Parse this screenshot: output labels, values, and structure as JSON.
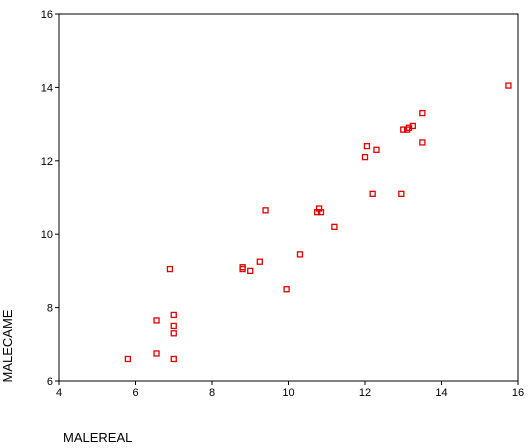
{
  "chart_data": {
    "type": "scatter",
    "xlabel": "MALEREAL",
    "ylabel": "MALECAME",
    "xlim": [
      4,
      16
    ],
    "ylim": [
      6,
      16
    ],
    "xticks": [
      "4",
      "6",
      "8",
      "10",
      "12",
      "14",
      "16"
    ],
    "yticks": [
      "6",
      "8",
      "10",
      "12",
      "14",
      "16"
    ],
    "grid": false,
    "marker": "hollow-square",
    "marker_color": "#e00000",
    "points": [
      {
        "x": 5.8,
        "y": 6.6
      },
      {
        "x": 6.55,
        "y": 6.75
      },
      {
        "x": 7.0,
        "y": 6.6
      },
      {
        "x": 7.0,
        "y": 7.3
      },
      {
        "x": 7.0,
        "y": 7.5
      },
      {
        "x": 6.55,
        "y": 7.65
      },
      {
        "x": 7.0,
        "y": 7.8
      },
      {
        "x": 6.9,
        "y": 9.05
      },
      {
        "x": 8.8,
        "y": 9.1
      },
      {
        "x": 8.8,
        "y": 9.05
      },
      {
        "x": 9.0,
        "y": 9.0
      },
      {
        "x": 9.25,
        "y": 9.25
      },
      {
        "x": 9.4,
        "y": 10.65
      },
      {
        "x": 9.95,
        "y": 8.5
      },
      {
        "x": 10.3,
        "y": 9.45
      },
      {
        "x": 10.75,
        "y": 10.6
      },
      {
        "x": 10.8,
        "y": 10.7
      },
      {
        "x": 10.85,
        "y": 10.6
      },
      {
        "x": 11.2,
        "y": 10.2
      },
      {
        "x": 12.0,
        "y": 12.1
      },
      {
        "x": 12.05,
        "y": 12.4
      },
      {
        "x": 12.2,
        "y": 11.1
      },
      {
        "x": 12.3,
        "y": 12.3
      },
      {
        "x": 12.95,
        "y": 11.1
      },
      {
        "x": 13.0,
        "y": 12.85
      },
      {
        "x": 13.1,
        "y": 12.85
      },
      {
        "x": 13.15,
        "y": 12.9
      },
      {
        "x": 13.25,
        "y": 12.95
      },
      {
        "x": 13.5,
        "y": 13.3
      },
      {
        "x": 13.5,
        "y": 12.5
      },
      {
        "x": 15.75,
        "y": 14.05
      }
    ]
  }
}
